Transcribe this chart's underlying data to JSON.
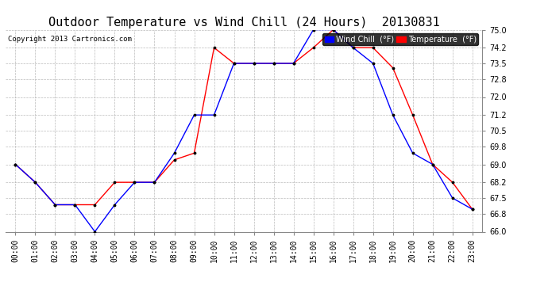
{
  "title": "Outdoor Temperature vs Wind Chill (24 Hours)  20130831",
  "copyright": "Copyright 2013 Cartronics.com",
  "hours": [
    "00:00",
    "01:00",
    "02:00",
    "03:00",
    "04:00",
    "05:00",
    "06:00",
    "07:00",
    "08:00",
    "09:00",
    "10:00",
    "11:00",
    "12:00",
    "13:00",
    "14:00",
    "15:00",
    "16:00",
    "17:00",
    "18:00",
    "19:00",
    "20:00",
    "21:00",
    "22:00",
    "23:00"
  ],
  "temperature": [
    69.0,
    68.2,
    67.2,
    67.2,
    67.2,
    68.2,
    68.2,
    68.2,
    69.2,
    69.5,
    74.2,
    73.5,
    73.5,
    73.5,
    73.5,
    74.2,
    75.0,
    74.2,
    74.2,
    73.3,
    71.2,
    69.0,
    68.2,
    67.0
  ],
  "wind_chill": [
    69.0,
    68.2,
    67.2,
    67.2,
    66.0,
    67.2,
    68.2,
    68.2,
    69.5,
    71.2,
    71.2,
    73.5,
    73.5,
    73.5,
    73.5,
    75.0,
    75.0,
    74.2,
    73.5,
    71.2,
    69.5,
    69.0,
    67.5,
    67.0
  ],
  "temp_color": "#FF0000",
  "wind_chill_color": "#0000FF",
  "bg_color": "#FFFFFF",
  "grid_color": "#AAAAAA",
  "ylim_min": 66.0,
  "ylim_max": 75.0,
  "yticks": [
    66.0,
    66.8,
    67.5,
    68.2,
    69.0,
    69.8,
    70.5,
    71.2,
    72.0,
    72.8,
    73.5,
    74.2,
    75.0
  ],
  "title_fontsize": 11,
  "tick_fontsize": 7,
  "legend_wind_label": "Wind Chill  (°F)",
  "legend_temp_label": "Temperature  (°F)"
}
